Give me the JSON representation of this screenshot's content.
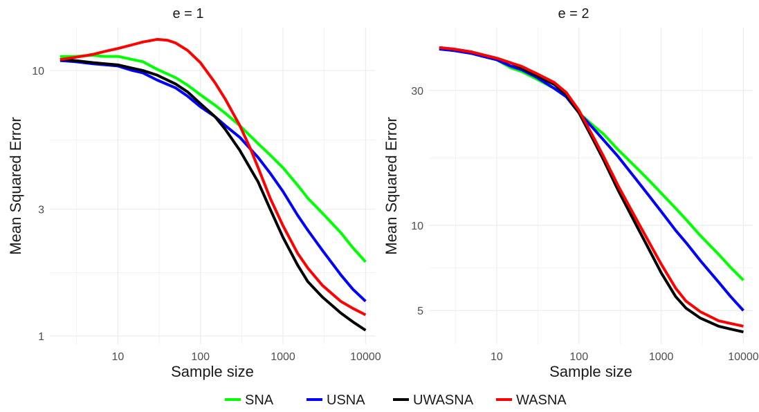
{
  "colors": {
    "SNA": "#00ff00",
    "USNA": "#0000ff",
    "UWASNA": "#000000",
    "WASNA": "#ff0000",
    "grid": "#ebebeb",
    "text": "#1a1a1a",
    "tick": "#4d4d4d"
  },
  "legend": {
    "position": "bottom",
    "items": [
      {
        "name": "SNA",
        "color": "#00ff00"
      },
      {
        "name": "USNA",
        "color": "#0000ff"
      },
      {
        "name": "UWASNA",
        "color": "#000000"
      },
      {
        "name": "WASNA",
        "color": "#ff0000"
      }
    ]
  },
  "chart_data": [
    {
      "type": "line",
      "title": "e = 1",
      "xlabel": "Sample size",
      "ylabel": "Mean Squared Error",
      "xscale": "log",
      "yscale": "log",
      "xlim": [
        1.5,
        13000
      ],
      "ylim": [
        0.93,
        14.5
      ],
      "xticks": [
        10,
        100,
        1000,
        10000
      ],
      "xtick_labels": [
        "10",
        "100",
        "1000",
        "10000"
      ],
      "yticks": [
        1,
        3,
        10
      ],
      "ytick_labels": [
        "1",
        "3",
        "10"
      ],
      "grid": true,
      "series": [
        {
          "name": "SNA",
          "x": [
            2,
            3,
            5,
            7,
            10,
            15,
            20,
            30,
            50,
            70,
            100,
            150,
            200,
            300,
            500,
            700,
            1000,
            1500,
            2000,
            3000,
            5000,
            7000,
            10000
          ],
          "y": [
            11.3,
            11.3,
            11.4,
            11.3,
            11.3,
            11.0,
            10.8,
            10.1,
            9.4,
            8.8,
            8.1,
            7.4,
            6.9,
            6.2,
            5.3,
            4.8,
            4.3,
            3.7,
            3.3,
            2.9,
            2.45,
            2.15,
            1.9
          ]
        },
        {
          "name": "USNA",
          "x": [
            2,
            3,
            5,
            7,
            10,
            15,
            20,
            30,
            50,
            70,
            100,
            150,
            200,
            300,
            500,
            700,
            1000,
            1500,
            2000,
            3000,
            5000,
            7000,
            10000
          ],
          "y": [
            10.9,
            10.8,
            10.6,
            10.5,
            10.4,
            10.0,
            9.8,
            9.2,
            8.6,
            8.0,
            7.3,
            6.7,
            6.2,
            5.6,
            4.7,
            4.1,
            3.5,
            2.85,
            2.5,
            2.1,
            1.7,
            1.5,
            1.35
          ]
        },
        {
          "name": "UWASNA",
          "x": [
            2,
            3,
            5,
            7,
            10,
            15,
            20,
            30,
            50,
            70,
            100,
            150,
            200,
            300,
            500,
            700,
            1000,
            1500,
            2000,
            3000,
            5000,
            7000,
            10000
          ],
          "y": [
            11.0,
            10.9,
            10.7,
            10.6,
            10.5,
            10.2,
            10.0,
            9.6,
            8.9,
            8.3,
            7.5,
            6.7,
            6.0,
            5.0,
            3.8,
            3.0,
            2.35,
            1.85,
            1.6,
            1.4,
            1.22,
            1.13,
            1.05
          ]
        },
        {
          "name": "WASNA",
          "x": [
            2,
            3,
            5,
            7,
            10,
            15,
            20,
            30,
            40,
            50,
            70,
            100,
            150,
            200,
            300,
            400,
            500,
            700,
            1000,
            1500,
            2000,
            3000,
            5000,
            7000,
            10000
          ],
          "y": [
            11.0,
            11.2,
            11.5,
            11.8,
            12.1,
            12.5,
            12.8,
            13.1,
            13.0,
            12.7,
            11.9,
            10.7,
            9.0,
            7.8,
            6.2,
            5.1,
            4.3,
            3.3,
            2.6,
            2.05,
            1.8,
            1.55,
            1.35,
            1.27,
            1.2
          ]
        }
      ]
    },
    {
      "type": "line",
      "title": "e = 2",
      "xlabel": "Sample size",
      "ylabel": "Mean Squared Error",
      "xscale": "log",
      "yscale": "log",
      "xlim": [
        1.5,
        13000
      ],
      "ylim": [
        3.8,
        50
      ],
      "xticks": [
        10,
        100,
        1000,
        10000
      ],
      "xtick_labels": [
        "10",
        "100",
        "1000",
        "10000"
      ],
      "yticks": [
        5,
        10,
        30
      ],
      "ytick_labels": [
        "5",
        "10",
        "30"
      ],
      "grid": true,
      "series": [
        {
          "name": "SNA",
          "x": [
            2,
            3,
            5,
            7,
            10,
            15,
            20,
            30,
            50,
            70,
            100,
            150,
            200,
            300,
            500,
            700,
            1000,
            1500,
            2000,
            3000,
            5000,
            7000,
            10000
          ],
          "y": [
            42.0,
            41.5,
            40.5,
            39.5,
            38.5,
            36.0,
            35.0,
            33.0,
            30.5,
            28.5,
            25.0,
            22.5,
            21.0,
            18.5,
            16.0,
            14.5,
            13.0,
            11.5,
            10.5,
            9.2,
            7.9,
            7.1,
            6.4
          ]
        },
        {
          "name": "USNA",
          "x": [
            2,
            3,
            5,
            7,
            10,
            15,
            20,
            30,
            50,
            70,
            100,
            150,
            200,
            300,
            500,
            700,
            1000,
            1500,
            2000,
            3000,
            5000,
            7000,
            10000
          ],
          "y": [
            42.0,
            41.5,
            40.5,
            39.5,
            38.5,
            36.5,
            35.5,
            33.5,
            30.5,
            28.5,
            25.0,
            22.0,
            20.0,
            17.5,
            14.5,
            12.8,
            11.2,
            9.6,
            8.7,
            7.5,
            6.3,
            5.6,
            5.0
          ]
        },
        {
          "name": "UWASNA",
          "x": [
            2,
            3,
            5,
            7,
            10,
            15,
            20,
            30,
            50,
            70,
            100,
            150,
            200,
            300,
            500,
            700,
            1000,
            1500,
            2000,
            3000,
            5000,
            7000,
            10000
          ],
          "y": [
            42.5,
            42.0,
            41.0,
            40.0,
            39.0,
            37.5,
            36.0,
            34.0,
            31.5,
            29.0,
            25.0,
            20.0,
            17.0,
            13.3,
            10.0,
            8.3,
            6.8,
            5.6,
            5.1,
            4.7,
            4.4,
            4.3,
            4.2
          ]
        },
        {
          "name": "WASNA",
          "x": [
            2,
            3,
            5,
            7,
            10,
            15,
            20,
            30,
            50,
            70,
            100,
            150,
            200,
            300,
            500,
            700,
            1000,
            1500,
            2000,
            3000,
            5000,
            7000,
            10000
          ],
          "y": [
            42.5,
            42.0,
            41.0,
            40.0,
            39.0,
            37.5,
            36.5,
            34.5,
            32.0,
            29.5,
            25.5,
            20.5,
            17.5,
            13.8,
            10.5,
            8.8,
            7.3,
            6.0,
            5.4,
            4.95,
            4.6,
            4.5,
            4.4
          ]
        }
      ]
    }
  ]
}
